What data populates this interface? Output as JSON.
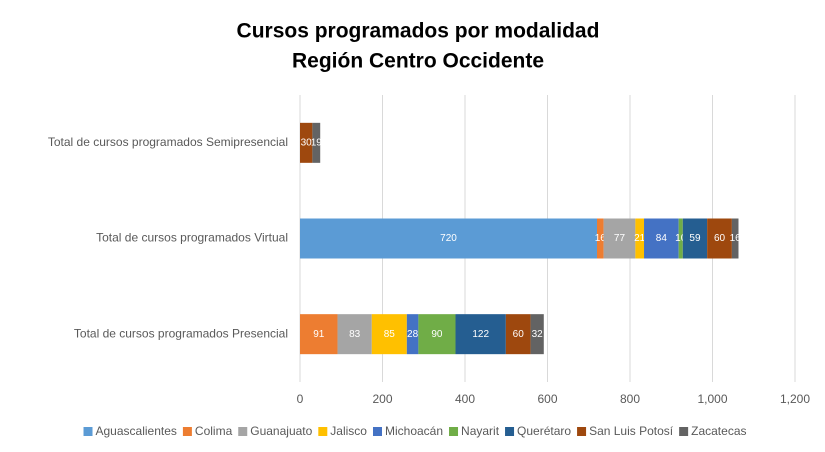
{
  "chart_data": {
    "type": "stacked_bar_horizontal",
    "title": [
      "Cursos programados por modalidad",
      "Región Centro Occidente"
    ],
    "categories": [
      "Total de cursos programados Semipresencial",
      "Total de cursos programados Virtual",
      "Total de cursos programados Presencial"
    ],
    "series": [
      {
        "name": "Aguascalientes",
        "color": "#5b9bd5",
        "values": [
          null,
          720,
          null
        ]
      },
      {
        "name": "Colima",
        "color": "#ed7d31",
        "values": [
          null,
          16,
          91
        ]
      },
      {
        "name": "Guanajuato",
        "color": "#a5a5a5",
        "values": [
          null,
          77,
          83
        ]
      },
      {
        "name": "Jalisco",
        "color": "#ffc000",
        "values": [
          null,
          21,
          85
        ]
      },
      {
        "name": "Michoacán",
        "color": "#4472c4",
        "values": [
          null,
          84,
          28
        ]
      },
      {
        "name": "Nayarit",
        "color": "#70ad47",
        "values": [
          null,
          10,
          90
        ]
      },
      {
        "name": "Querétaro",
        "color": "#255e91",
        "values": [
          null,
          59,
          122
        ]
      },
      {
        "name": "San Luis Potosí",
        "color": "#9e480e",
        "values": [
          30,
          60,
          60
        ]
      },
      {
        "name": "Zacatecas",
        "color": "#636363",
        "values": [
          19,
          16,
          32
        ]
      }
    ],
    "xlim": [
      0,
      1200
    ],
    "xticks": [
      0,
      200,
      400,
      600,
      800,
      {
        "value": 1000,
        "label": "1,000"
      },
      {
        "value": 1200,
        "label": "1,200"
      }
    ],
    "grid": true,
    "legend": "bottom"
  }
}
